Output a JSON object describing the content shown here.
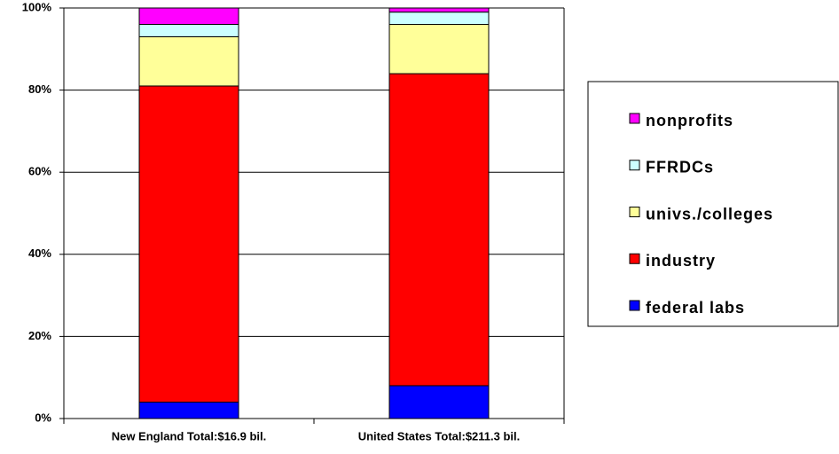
{
  "chart_data": {
    "type": "stacked_bar",
    "categories": [
      "New England Total:$16.9 bil.",
      "United States Total:$211.3 bil."
    ],
    "series": [
      {
        "name": "federal labs",
        "color": "#0000ff",
        "values": [
          4,
          8
        ]
      },
      {
        "name": "industry",
        "color": "#ff0000",
        "values": [
          77,
          76
        ]
      },
      {
        "name": "univs./colleges",
        "color": "#ffff99",
        "values": [
          12,
          12
        ]
      },
      {
        "name": "FFRDCs",
        "color": "#ccffff",
        "values": [
          3,
          3
        ]
      },
      {
        "name": "nonprofits",
        "color": "#ff00ff",
        "values": [
          4,
          1
        ]
      }
    ],
    "ylim": [
      0,
      100
    ],
    "yticks": [
      {
        "value": 0,
        "label": "0%"
      },
      {
        "value": 20,
        "label": "20%"
      },
      {
        "value": 40,
        "label": "40%"
      },
      {
        "value": 60,
        "label": "60%"
      },
      {
        "value": 80,
        "label": "80%"
      },
      {
        "value": 100,
        "label": "100%"
      }
    ],
    "grid": true,
    "legend": "right"
  }
}
